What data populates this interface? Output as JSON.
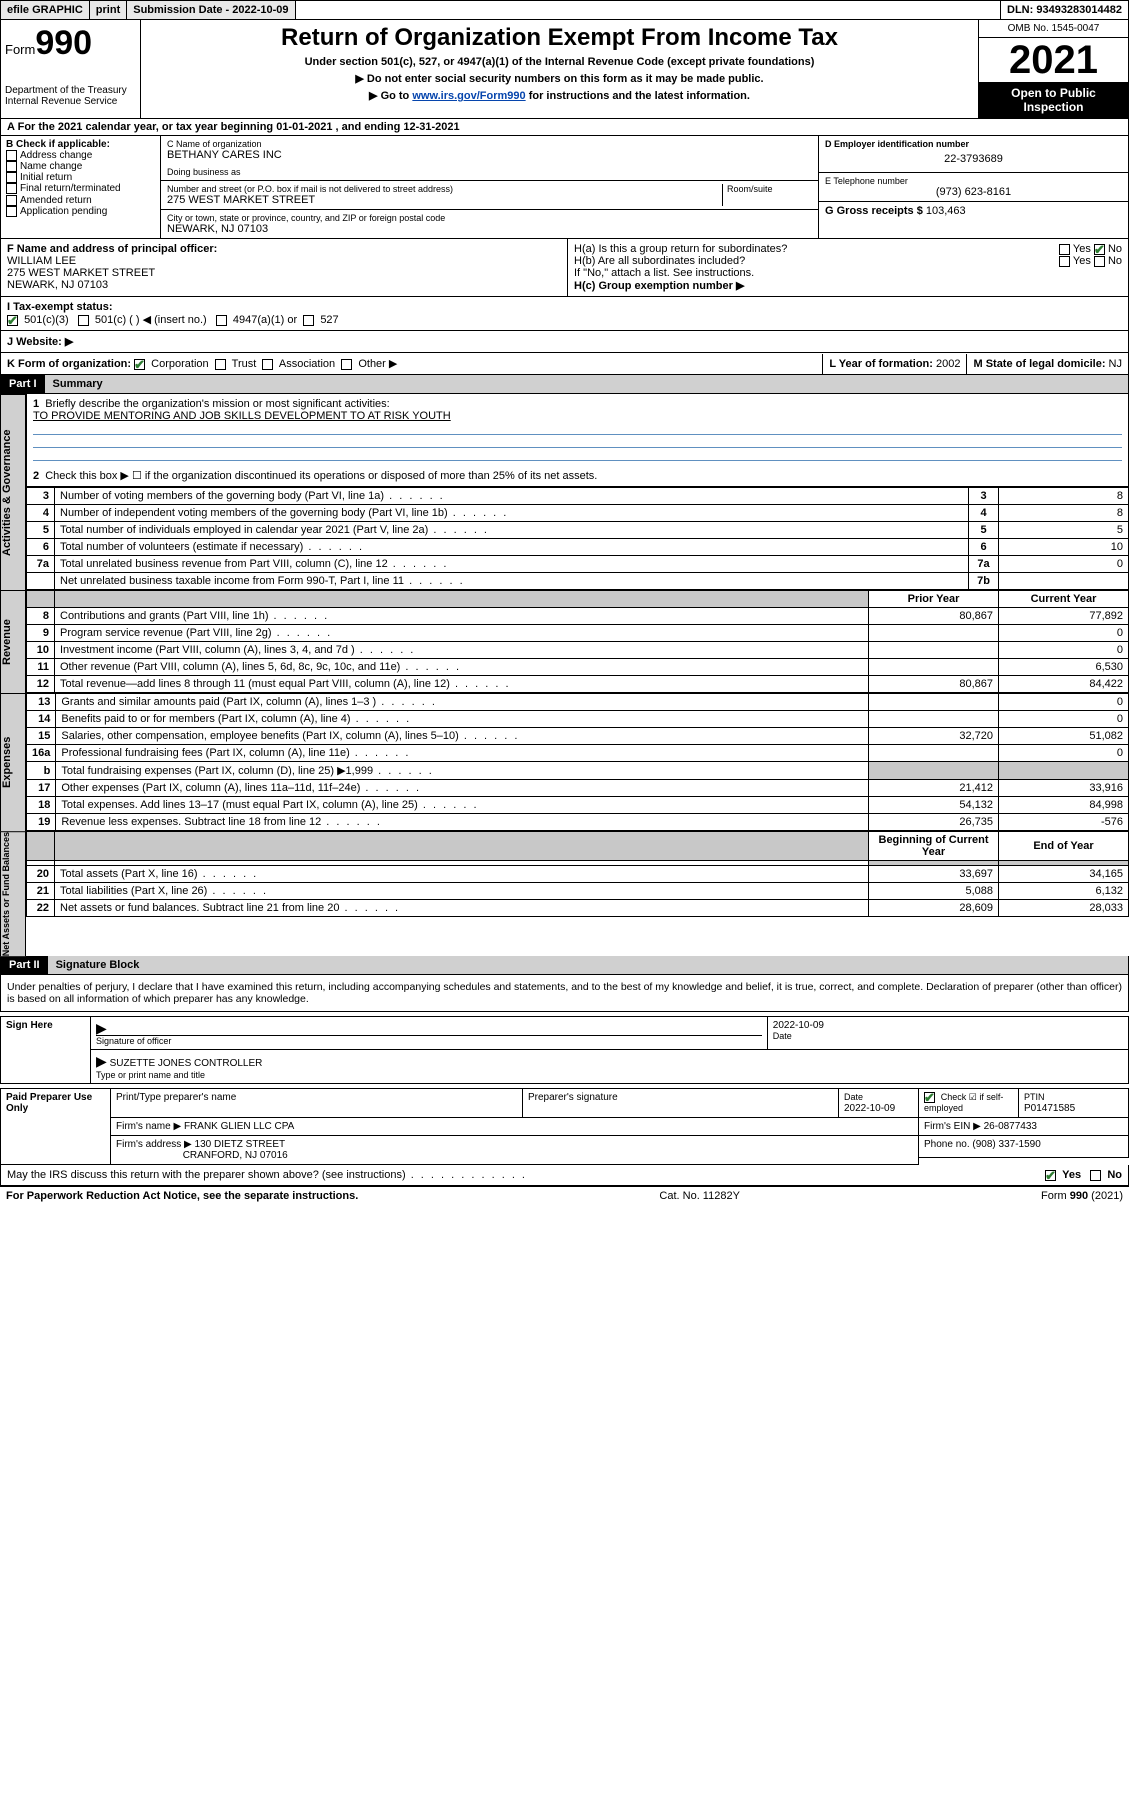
{
  "topbar": {
    "efile": "efile GRAPHIC",
    "print": "print",
    "subdate_label": "Submission Date - 2022-10-09",
    "dln": "DLN: 93493283014482"
  },
  "header": {
    "form_label": "Form",
    "form_num": "990",
    "dept": "Department of the Treasury",
    "irs": "Internal Revenue Service",
    "title": "Return of Organization Exempt From Income Tax",
    "sub1": "Under section 501(c), 527, or 4947(a)(1) of the Internal Revenue Code (except private foundations)",
    "sub2": "▶ Do not enter social security numbers on this form as it may be made public.",
    "sub3_pre": "▶ Go to ",
    "sub3_link": "www.irs.gov/Form990",
    "sub3_post": " for instructions and the latest information.",
    "omb": "OMB No. 1545-0047",
    "year": "2021",
    "inspect": "Open to Public Inspection"
  },
  "section_a": "For the 2021 calendar year, or tax year beginning 01-01-2021   , and ending 12-31-2021",
  "col_b": {
    "hdr": "B Check if applicable:",
    "items": [
      "Address change",
      "Name change",
      "Initial return",
      "Final return/terminated",
      "Amended return",
      "Application pending"
    ]
  },
  "col_c": {
    "name_lbl": "C Name of organization",
    "name": "BETHANY CARES INC",
    "dba_lbl": "Doing business as",
    "addr_lbl": "Number and street (or P.O. box if mail is not delivered to street address)",
    "room_lbl": "Room/suite",
    "addr": "275 WEST MARKET STREET",
    "city_lbl": "City or town, state or province, country, and ZIP or foreign postal code",
    "city": "NEWARK, NJ  07103"
  },
  "col_d": {
    "ein_lbl": "D Employer identification number",
    "ein": "22-3793689",
    "tel_lbl": "E Telephone number",
    "tel": "(973) 623-8161",
    "gross_lbl": "G Gross receipts $",
    "gross": "103,463"
  },
  "officer": {
    "f_lbl": "F Name and address of principal officer:",
    "name": "WILLIAM LEE",
    "addr1": "275 WEST MARKET STREET",
    "addr2": "NEWARK, NJ  07103",
    "ha": "H(a)  Is this a group return for subordinates?",
    "hb": "H(b)  Are all subordinates included?",
    "hb_note": "If \"No,\" attach a list. See instructions.",
    "hc": "H(c)  Group exemption number ▶",
    "yes": "Yes",
    "no": "No"
  },
  "status": {
    "i_lbl": "I   Tax-exempt status:",
    "opt1": "501(c)(3)",
    "opt2": "501(c) (  ) ◀ (insert no.)",
    "opt3": "4947(a)(1) or",
    "opt4": "527",
    "j_lbl": "J   Website: ▶"
  },
  "k_row": {
    "k_lbl": "K Form of organization:",
    "opts": [
      "Corporation",
      "Trust",
      "Association",
      "Other ▶"
    ],
    "l_lbl": "L Year of formation: ",
    "l_val": "2002",
    "m_lbl": "M State of legal domicile: ",
    "m_val": "NJ"
  },
  "part1": {
    "hdr": "Part I",
    "title": "Summary",
    "line1_lbl": "Briefly describe the organization's mission or most significant activities:",
    "line1_val": "TO PROVIDE MENTORING AND JOB SKILLS DEVELOPMENT TO AT RISK YOUTH",
    "line2": "Check this box ▶ ☐  if the organization discontinued its operations or disposed of more than 25% of its net assets."
  },
  "tabs": {
    "gov": "Activities & Governance",
    "rev": "Revenue",
    "exp": "Expenses",
    "net": "Net Assets or Fund Balances"
  },
  "gov_rows": [
    {
      "n": "3",
      "d": "Number of voting members of the governing body (Part VI, line 1a)",
      "b": "3",
      "v": "8"
    },
    {
      "n": "4",
      "d": "Number of independent voting members of the governing body (Part VI, line 1b)",
      "b": "4",
      "v": "8"
    },
    {
      "n": "5",
      "d": "Total number of individuals employed in calendar year 2021 (Part V, line 2a)",
      "b": "5",
      "v": "5"
    },
    {
      "n": "6",
      "d": "Total number of volunteers (estimate if necessary)",
      "b": "6",
      "v": "10"
    },
    {
      "n": "7a",
      "d": "Total unrelated business revenue from Part VIII, column (C), line 12",
      "b": "7a",
      "v": "0"
    },
    {
      "n": "",
      "d": "Net unrelated business taxable income from Form 990-T, Part I, line 11",
      "b": "7b",
      "v": ""
    }
  ],
  "col_hdrs": {
    "prior": "Prior Year",
    "current": "Current Year",
    "begin": "Beginning of Current Year",
    "end": "End of Year"
  },
  "rev_rows": [
    {
      "n": "8",
      "d": "Contributions and grants (Part VIII, line 1h)",
      "p": "80,867",
      "c": "77,892"
    },
    {
      "n": "9",
      "d": "Program service revenue (Part VIII, line 2g)",
      "p": "",
      "c": "0"
    },
    {
      "n": "10",
      "d": "Investment income (Part VIII, column (A), lines 3, 4, and 7d )",
      "p": "",
      "c": "0"
    },
    {
      "n": "11",
      "d": "Other revenue (Part VIII, column (A), lines 5, 6d, 8c, 9c, 10c, and 11e)",
      "p": "",
      "c": "6,530"
    },
    {
      "n": "12",
      "d": "Total revenue—add lines 8 through 11 (must equal Part VIII, column (A), line 12)",
      "p": "80,867",
      "c": "84,422"
    }
  ],
  "exp_rows": [
    {
      "n": "13",
      "d": "Grants and similar amounts paid (Part IX, column (A), lines 1–3 )",
      "p": "",
      "c": "0"
    },
    {
      "n": "14",
      "d": "Benefits paid to or for members (Part IX, column (A), line 4)",
      "p": "",
      "c": "0"
    },
    {
      "n": "15",
      "d": "Salaries, other compensation, employee benefits (Part IX, column (A), lines 5–10)",
      "p": "32,720",
      "c": "51,082"
    },
    {
      "n": "16a",
      "d": "Professional fundraising fees (Part IX, column (A), line 11e)",
      "p": "",
      "c": "0"
    },
    {
      "n": "b",
      "d": "Total fundraising expenses (Part IX, column (D), line 25) ▶1,999",
      "p": "shade",
      "c": "shade"
    },
    {
      "n": "17",
      "d": "Other expenses (Part IX, column (A), lines 11a–11d, 11f–24e)",
      "p": "21,412",
      "c": "33,916"
    },
    {
      "n": "18",
      "d": "Total expenses. Add lines 13–17 (must equal Part IX, column (A), line 25)",
      "p": "54,132",
      "c": "84,998"
    },
    {
      "n": "19",
      "d": "Revenue less expenses. Subtract line 18 from line 12",
      "p": "26,735",
      "c": "-576"
    }
  ],
  "net_rows": [
    {
      "n": "20",
      "d": "Total assets (Part X, line 16)",
      "p": "33,697",
      "c": "34,165"
    },
    {
      "n": "21",
      "d": "Total liabilities (Part X, line 26)",
      "p": "5,088",
      "c": "6,132"
    },
    {
      "n": "22",
      "d": "Net assets or fund balances. Subtract line 21 from line 20",
      "p": "28,609",
      "c": "28,033"
    }
  ],
  "part2": {
    "hdr": "Part II",
    "title": "Signature Block",
    "decl": "Under penalties of perjury, I declare that I have examined this return, including accompanying schedules and statements, and to the best of my knowledge and belief, it is true, correct, and complete. Declaration of preparer (other than officer) is based on all information of which preparer has any knowledge."
  },
  "sign": {
    "here": "Sign Here",
    "sig_lbl": "Signature of officer",
    "date_lbl": "Date",
    "date": "2022-10-09",
    "name": "SUZETTE JONES  CONTROLLER",
    "name_lbl": "Type or print name and title"
  },
  "paid": {
    "hdr": "Paid Preparer Use Only",
    "col1": "Print/Type preparer's name",
    "col2": "Preparer's signature",
    "col3_lbl": "Date",
    "col3": "2022-10-09",
    "col4_lbl": "Check ☑ if self-employed",
    "col5_lbl": "PTIN",
    "col5": "P01471585",
    "firm_lbl": "Firm's name    ▶",
    "firm": "FRANK GLIEN LLC CPA",
    "ein_lbl": "Firm's EIN ▶",
    "ein": "26-0877433",
    "addr_lbl": "Firm's address ▶",
    "addr1": "130 DIETZ STREET",
    "addr2": "CRANFORD, NJ  07016",
    "phone_lbl": "Phone no.",
    "phone": "(908) 337-1590"
  },
  "discuss": {
    "q": "May the IRS discuss this return with the preparer shown above? (see instructions)",
    "yes": "Yes",
    "no": "No"
  },
  "footer": {
    "left": "For Paperwork Reduction Act Notice, see the separate instructions.",
    "mid": "Cat. No. 11282Y",
    "right_pre": "Form ",
    "right_b": "990",
    "right_post": " (2021)"
  }
}
